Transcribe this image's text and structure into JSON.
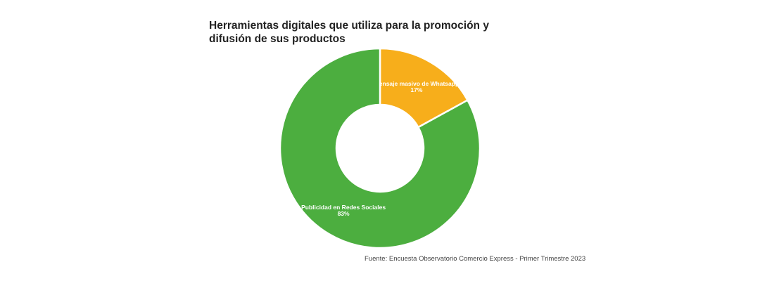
{
  "chart_data": {
    "type": "pie",
    "donut": true,
    "title": "Herramientas digitales que utiliza para la promoción y difusión de sus productos",
    "source": "Fuente: Encuesta Observatorio Comercio Express - Primer Trimestre 2023",
    "slices": [
      {
        "label": "Mensaje masivo de Whatsapp",
        "value": 17,
        "value_label": "17%",
        "color": "#F7AE1B"
      },
      {
        "label": "Publicidad en Redes Sociales",
        "value": 83,
        "value_label": "83%",
        "color": "#4CAE3F"
      }
    ],
    "legend": "none"
  }
}
